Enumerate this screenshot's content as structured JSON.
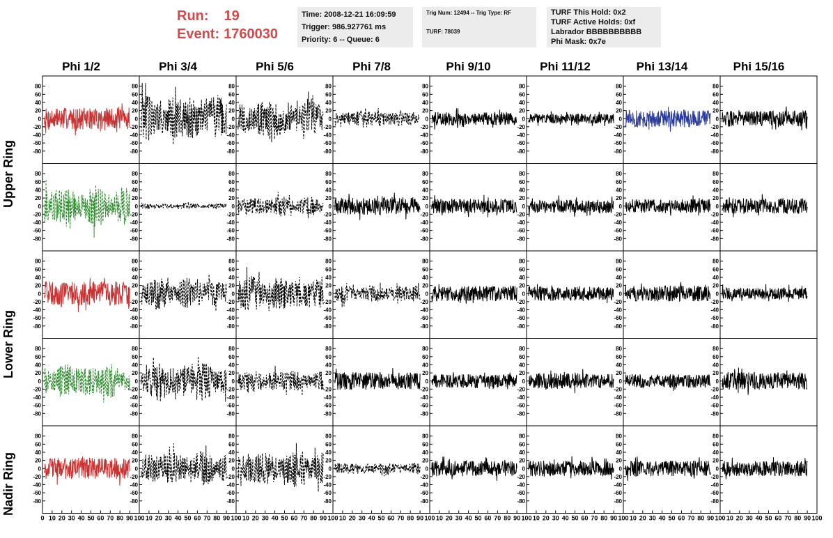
{
  "header": {
    "run_label": "Run:",
    "run_value": "19",
    "event_label": "Event:",
    "event_value": "1760030",
    "time": "Time: 2008-12-21 16:09:59",
    "trigger": "Trigger: 986.927761 ms",
    "priority": "Priority: 6 -- Queue: 6",
    "trig_num": "Trig Num: 12494 -- Trig Type: RF",
    "turf": "TURF: 78039",
    "turf_this_hold": "TURF This Hold: 0x2",
    "turf_active_holds": "TURF Active Holds: 0xf",
    "labrador": "Labrador BBBBBBBBBB",
    "phi_mask": "Phi Mask: 0x7e"
  },
  "columns": [
    "Phi 1/2",
    "Phi 3/4",
    "Phi 5/6",
    "Phi 7/8",
    "Phi 9/10",
    "Phi 11/12",
    "Phi 13/14",
    "Phi 15/16"
  ],
  "ring_labels": [
    "Upper Ring",
    "Lower Ring",
    "Nadir Ring"
  ],
  "chart_data": {
    "type": "line",
    "grid": false,
    "xlim": [
      0,
      100
    ],
    "ylim": [
      -95,
      95
    ],
    "yticks": [
      -80,
      -60,
      -40,
      -20,
      0,
      20,
      40,
      60,
      80
    ],
    "xticks": [
      0,
      10,
      20,
      30,
      40,
      50,
      60,
      70,
      80,
      90,
      100
    ],
    "panel_rows": 5,
    "panel_cols": 8,
    "colors": {
      "red": "#c83232",
      "green": "#2a8a2a",
      "blue": "#2c3c9c",
      "black": "#000000"
    },
    "panels": [
      [
        {
          "color": "red",
          "style": "solid",
          "amp": 22
        },
        {
          "color": "black",
          "style": "dashed",
          "amp": 55
        },
        {
          "color": "black",
          "style": "dashed",
          "amp": 45
        },
        {
          "color": "black",
          "style": "dashed",
          "amp": 20
        },
        {
          "color": "black",
          "style": "solid",
          "amp": 14
        },
        {
          "color": "black",
          "style": "solid",
          "amp": 10
        },
        {
          "color": "blue",
          "style": "solid",
          "amp": 18
        },
        {
          "color": "black",
          "style": "solid",
          "amp": 16
        }
      ],
      [
        {
          "color": "green",
          "style": "dashed",
          "amp": 45
        },
        {
          "color": "black",
          "style": "dashed",
          "amp": 6
        },
        {
          "color": "black",
          "style": "dashed",
          "amp": 22
        },
        {
          "color": "black",
          "style": "solid",
          "amp": 18
        },
        {
          "color": "black",
          "style": "solid",
          "amp": 15
        },
        {
          "color": "black",
          "style": "solid",
          "amp": 14
        },
        {
          "color": "black",
          "style": "solid",
          "amp": 14
        },
        {
          "color": "black",
          "style": "solid",
          "amp": 16
        }
      ],
      [
        {
          "color": "red",
          "style": "solid",
          "amp": 25
        },
        {
          "color": "black",
          "style": "dashed",
          "amp": 35
        },
        {
          "color": "black",
          "style": "dashed",
          "amp": 40
        },
        {
          "color": "black",
          "style": "dashed",
          "amp": 20
        },
        {
          "color": "black",
          "style": "solid",
          "amp": 16
        },
        {
          "color": "black",
          "style": "solid",
          "amp": 15
        },
        {
          "color": "black",
          "style": "solid",
          "amp": 16
        },
        {
          "color": "black",
          "style": "solid",
          "amp": 12
        }
      ],
      [
        {
          "color": "green",
          "style": "dashed",
          "amp": 38
        },
        {
          "color": "black",
          "style": "dashed",
          "amp": 42
        },
        {
          "color": "black",
          "style": "dashed",
          "amp": 25
        },
        {
          "color": "black",
          "style": "solid",
          "amp": 18
        },
        {
          "color": "black",
          "style": "solid",
          "amp": 14
        },
        {
          "color": "black",
          "style": "solid",
          "amp": 16
        },
        {
          "color": "black",
          "style": "solid",
          "amp": 14
        },
        {
          "color": "black",
          "style": "solid",
          "amp": 18
        }
      ],
      [
        {
          "color": "red",
          "style": "solid",
          "amp": 22
        },
        {
          "color": "black",
          "style": "dashed",
          "amp": 38
        },
        {
          "color": "black",
          "style": "dashed",
          "amp": 40
        },
        {
          "color": "black",
          "style": "dashed",
          "amp": 14
        },
        {
          "color": "black",
          "style": "solid",
          "amp": 16
        },
        {
          "color": "black",
          "style": "solid",
          "amp": 16
        },
        {
          "color": "black",
          "style": "solid",
          "amp": 16
        },
        {
          "color": "black",
          "style": "solid",
          "amp": 16
        }
      ]
    ]
  }
}
